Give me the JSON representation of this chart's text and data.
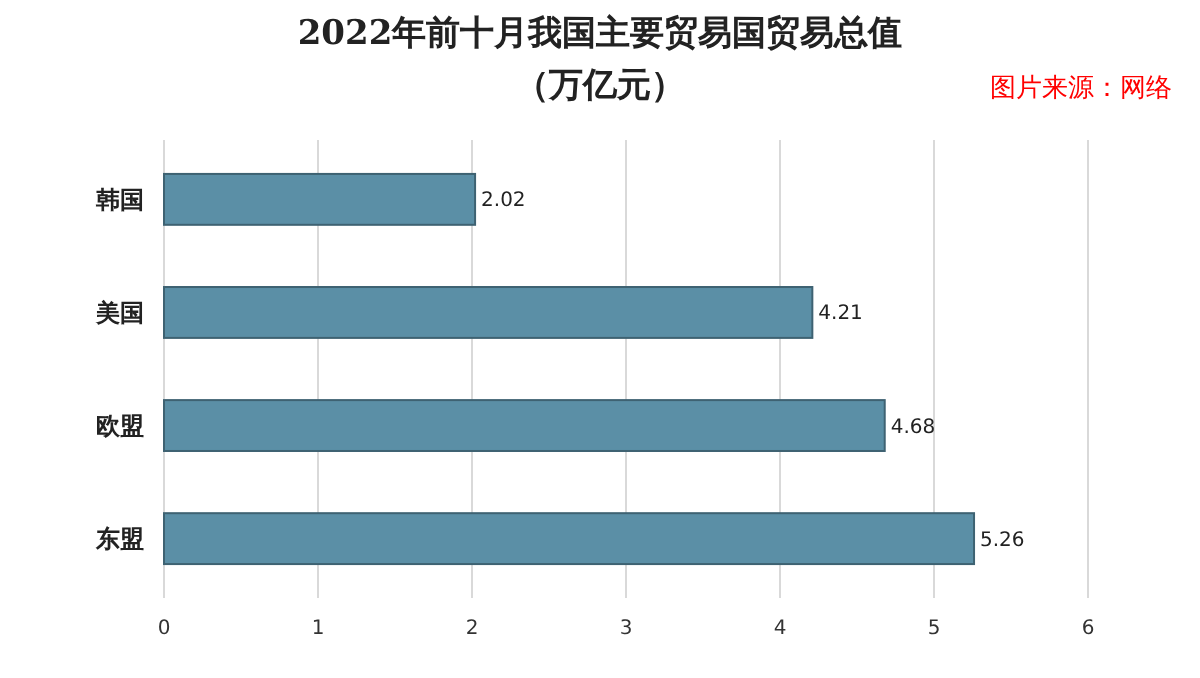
{
  "chart_data": {
    "type": "bar",
    "orientation": "horizontal",
    "title": "2022年前十月我国主要贸易国贸易总值",
    "subtitle": "（万亿元）",
    "annotations": [
      "图片来源：网络"
    ],
    "categories": [
      "韩国",
      "美国",
      "欧盟",
      "东盟"
    ],
    "values": [
      2.02,
      4.21,
      4.68,
      5.26
    ],
    "color": "#5b8fa6",
    "xlim": [
      0,
      6
    ],
    "xticks": [
      0,
      1,
      2,
      3,
      4,
      5,
      6
    ],
    "grid": "x",
    "data_labels": true
  }
}
